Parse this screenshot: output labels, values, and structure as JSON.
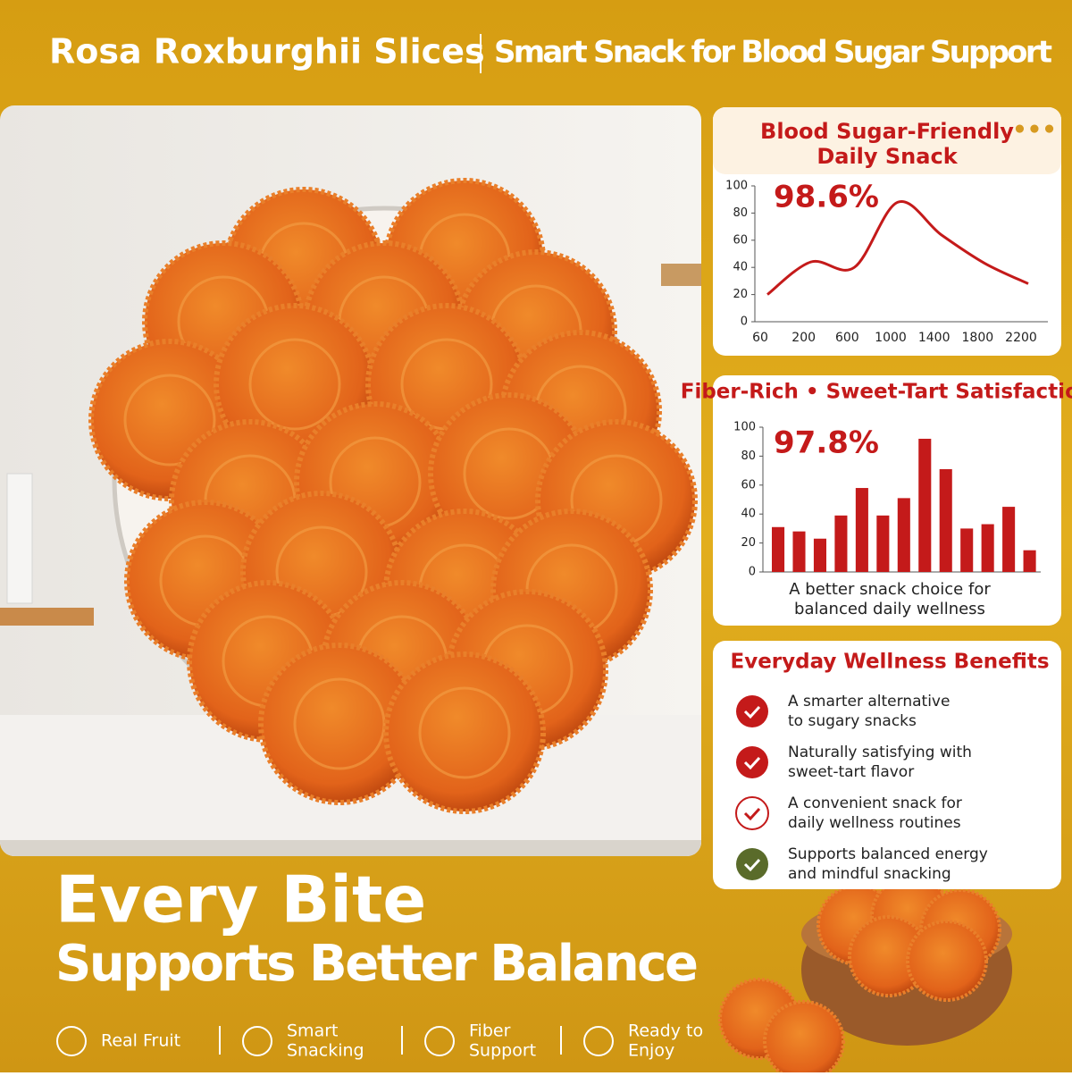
{
  "header": {
    "title": "Rosa Roxburghii Slices",
    "subtitle": "Smart Snack for Blood Sugar Support"
  },
  "chart_data": [
    {
      "type": "line",
      "title": [
        "Blood Sugar-Friendly",
        "Daily Snack"
      ],
      "annotation": "98.6%",
      "categories": [
        "60",
        "200",
        "600",
        "1000",
        "1400",
        "1800",
        "2200"
      ],
      "values": [
        20,
        44,
        40,
        88,
        64,
        43,
        28
      ],
      "color": "#c41a1a",
      "ylim": [
        0,
        100
      ],
      "yticks": [
        0,
        20,
        40,
        60,
        80,
        100
      ]
    },
    {
      "type": "bar",
      "title": [
        "Fiber-Rich • Sweet-Tart Satisfaction"
      ],
      "annotation": "97.8%",
      "caption": [
        "A better snack choice for",
        "balanced daily wellness"
      ],
      "values": [
        31,
        28,
        23,
        39,
        58,
        39,
        51,
        92,
        71,
        30,
        33,
        45,
        15
      ],
      "color": "#c41a1a",
      "ylim": [
        0,
        100
      ],
      "yticks": [
        0,
        20,
        40,
        60,
        80,
        100
      ]
    }
  ],
  "benefits": {
    "title": "Everyday Wellness Benefits",
    "items": [
      [
        "A smarter alternative",
        "to sugary snacks"
      ],
      [
        "Naturally satisfying with",
        "sweet-tart flavor"
      ],
      [
        "A convenient snack for",
        "daily wellness routines"
      ],
      [
        "Supports balanced energy",
        "and mindful snacking"
      ]
    ]
  },
  "headline": {
    "line1": "Every Bite",
    "line2": "Supports Better Balance"
  },
  "features": [
    [
      "Real Fruit"
    ],
    [
      "Smart",
      "Snacking"
    ],
    [
      "Fiber",
      "Support"
    ],
    [
      "Ready to",
      "Enjoy"
    ]
  ]
}
